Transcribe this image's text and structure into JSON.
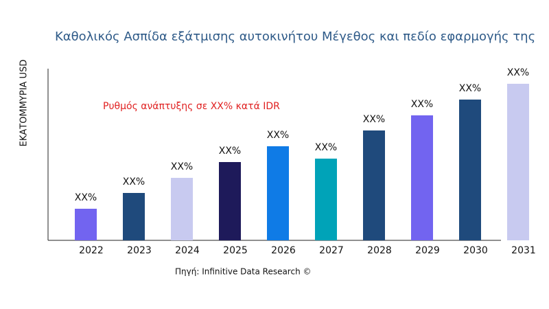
{
  "chart_data": {
    "type": "bar",
    "title": "Καθολικός Ασπίδα εξάτμισης αυτοκινήτου Μέγεθος και πεδίο εφαρμογής της",
    "y_label": "ΕΚΑΤΟΜΜΥΡΙΑ USD",
    "annotation": "Ρυθμός ανάπτυξης σε XX% κατά IDR",
    "source": "Πηγή: Infinitive Data Research ©",
    "categories": [
      "2022",
      "2023",
      "2024",
      "2025",
      "2026",
      "2027",
      "2028",
      "2029",
      "2030",
      "2031"
    ],
    "values": [
      46,
      69,
      91,
      114,
      137,
      119,
      160,
      182,
      205,
      228
    ],
    "value_labels": [
      "XX%",
      "XX%",
      "XX%",
      "XX%",
      "XX%",
      "XX%",
      "XX%",
      "XX%",
      "XX%",
      "XX%"
    ],
    "colors": [
      "#7264f0",
      "#1f4a7c",
      "#c8caf0",
      "#1e1a5a",
      "#0f7be6",
      "#00a3b8",
      "#1f4a7c",
      "#7264f0",
      "#1f4a7c",
      "#c8caf0"
    ]
  }
}
